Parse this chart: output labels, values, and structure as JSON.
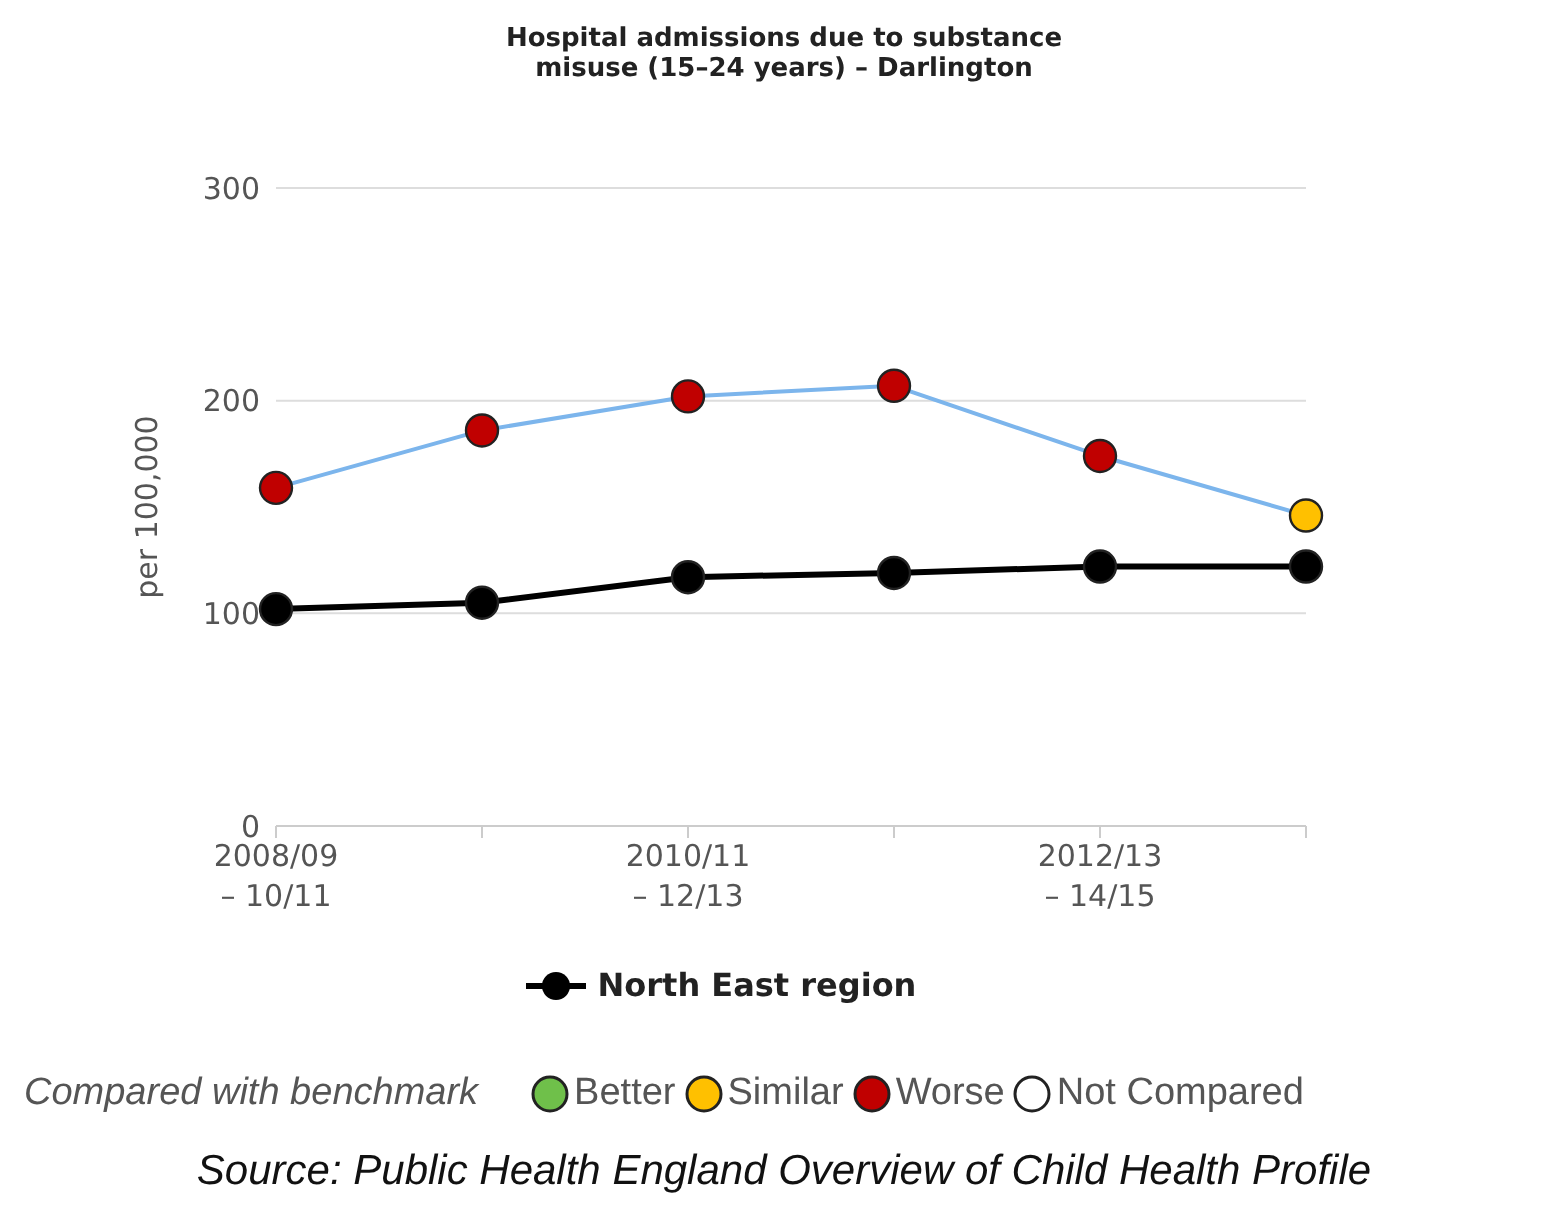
{
  "chart_data": {
    "type": "line",
    "title": "Hospital admissions due to substance misuse (15–24 years) – Darlington",
    "ylabel": "per 100,000",
    "categories": [
      "2008/09\n– 10/11",
      null,
      "2010/11\n– 12/13",
      null,
      "2012/13\n– 14/15",
      null
    ],
    "series": [
      {
        "color": "#7cb5ec",
        "colors": [
          "#c00000",
          "#c00000",
          "#c00000",
          "#c00000",
          "#c00000",
          "#ffc000"
        ],
        "values": [
          159,
          186,
          202,
          207,
          174,
          146
        ]
      },
      {
        "name": "North East region",
        "color": "#000000",
        "values": [
          102,
          105,
          117,
          119,
          122,
          122
        ]
      }
    ],
    "ylim": [
      0,
      300
    ],
    "yticks": [
      0,
      100,
      200,
      300
    ],
    "grid": "y",
    "legend": "bottom",
    "marker": "circle",
    "annotations": [
      "Compared with benchmark",
      "Better",
      "Similar",
      "Worse",
      "Not Compared",
      "Source: Public Health England Overview of Child Health Profile"
    ]
  }
}
